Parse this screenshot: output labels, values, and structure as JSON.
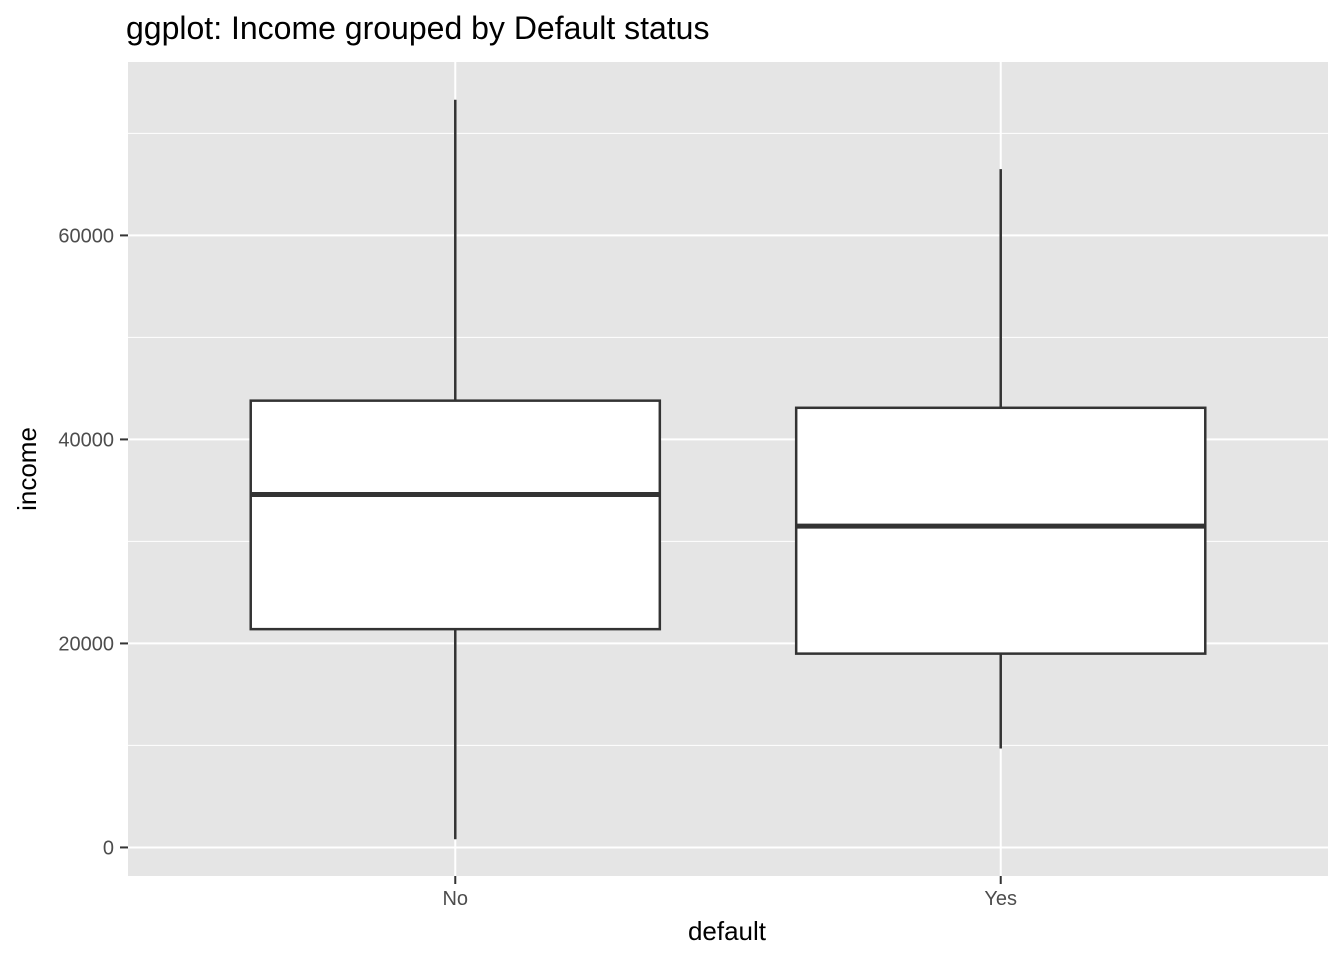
{
  "chart_data": {
    "type": "boxplot",
    "title": "ggplot: Income grouped by Default status",
    "xlabel": "default",
    "ylabel": "income",
    "categories": [
      "No",
      "Yes"
    ],
    "boxes": [
      {
        "category": "No",
        "whisker_low": 800,
        "q1": 21400,
        "median": 34600,
        "q3": 43800,
        "whisker_high": 73300
      },
      {
        "category": "Yes",
        "whisker_low": 9700,
        "q1": 19000,
        "median": 31500,
        "q3": 43100,
        "whisker_high": 66500
      }
    ],
    "ylim": [
      -2800,
      77000
    ],
    "y_ticks": [
      0,
      20000,
      40000,
      60000
    ],
    "y_tick_labels": [
      "0",
      "20000",
      "40000",
      "60000"
    ],
    "grid": true,
    "colors": {
      "panel_background": "#e5e5e5",
      "grid": "#ffffff",
      "box_fill": "#ffffff",
      "box_stroke": "#333333",
      "tick_mark": "#333333"
    }
  }
}
